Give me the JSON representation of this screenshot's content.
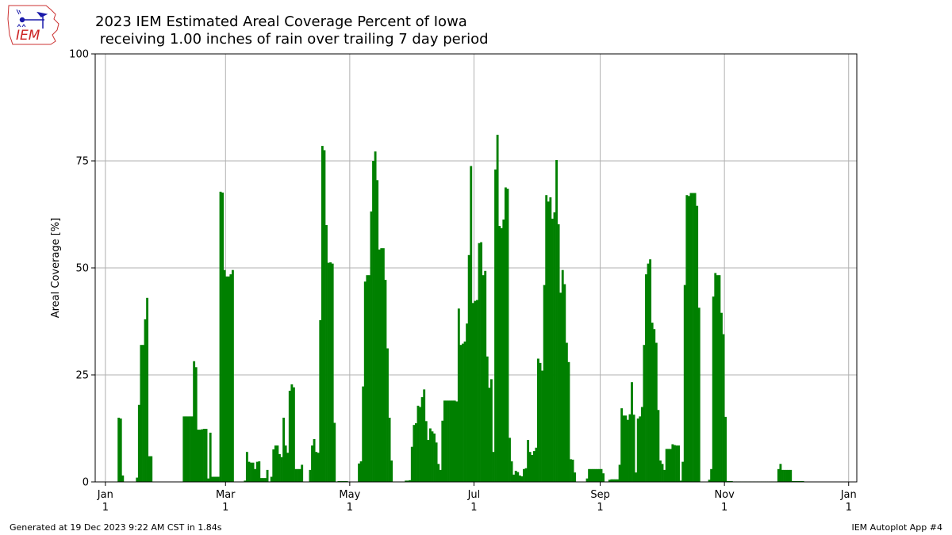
{
  "title_line1": "2023 IEM Estimated Areal Coverage Percent of Iowa",
  "title_line2": " receiving 1.00 inches of rain over trailing 7 day period",
  "footer_left": "Generated at 19 Dec 2023 9:22 AM CST in 1.84s",
  "footer_right": "IEM Autoplot App #4",
  "logo_text": "IEM",
  "colors": {
    "bar": "#008000",
    "grid": "#b0b0b0",
    "logo": "#cc2222"
  },
  "chart_data": {
    "type": "bar",
    "ylabel": "Areal Coverage [%]",
    "xlabel": "",
    "ylim": [
      0,
      100
    ],
    "yticks": [
      0,
      25,
      50,
      75,
      100
    ],
    "xlim": [
      "2022-12-27",
      "2024-01-05"
    ],
    "xticks": [
      {
        "date": "2023-01-01",
        "month": "Jan",
        "day": "1"
      },
      {
        "date": "2023-03-01",
        "month": "Mar",
        "day": "1"
      },
      {
        "date": "2023-05-01",
        "month": "May",
        "day": "1"
      },
      {
        "date": "2023-07-01",
        "month": "Jul",
        "day": "1"
      },
      {
        "date": "2023-09-01",
        "month": "Sep",
        "day": "1"
      },
      {
        "date": "2023-11-01",
        "month": "Nov",
        "day": "1"
      },
      {
        "date": "2024-01-01",
        "month": "Jan",
        "day": "1"
      }
    ],
    "grid": true,
    "bars": [
      [
        "2023-01-07",
        15
      ],
      [
        "2023-01-08",
        14.8
      ],
      [
        "2023-01-09",
        1.5
      ],
      [
        "2023-01-16",
        1
      ],
      [
        "2023-01-17",
        18
      ],
      [
        "2023-01-18",
        32
      ],
      [
        "2023-01-19",
        32
      ],
      [
        "2023-01-20",
        38
      ],
      [
        "2023-01-21",
        43
      ],
      [
        "2023-01-22",
        6
      ],
      [
        "2023-01-23",
        6
      ],
      [
        "2023-02-08",
        15.3
      ],
      [
        "2023-02-09",
        15.3
      ],
      [
        "2023-02-10",
        15.3
      ],
      [
        "2023-02-11",
        15.3
      ],
      [
        "2023-02-12",
        15.3
      ],
      [
        "2023-02-13",
        28.2
      ],
      [
        "2023-02-14",
        26.8
      ],
      [
        "2023-02-15",
        12.2
      ],
      [
        "2023-02-16",
        12.2
      ],
      [
        "2023-02-17",
        12.3
      ],
      [
        "2023-02-18",
        12.4
      ],
      [
        "2023-02-19",
        12.4
      ],
      [
        "2023-02-20",
        0.8
      ],
      [
        "2023-02-21",
        11.5
      ],
      [
        "2023-02-22",
        1.2
      ],
      [
        "2023-02-23",
        1.2
      ],
      [
        "2023-02-24",
        1.2
      ],
      [
        "2023-02-25",
        1.2
      ],
      [
        "2023-02-26",
        67.8
      ],
      [
        "2023-02-27",
        67.6
      ],
      [
        "2023-02-28",
        49.5
      ],
      [
        "2023-03-01",
        48
      ],
      [
        "2023-03-02",
        48
      ],
      [
        "2023-03-03",
        48.5
      ],
      [
        "2023-03-04",
        49.5
      ],
      [
        "2023-03-10",
        0.3
      ],
      [
        "2023-03-11",
        7
      ],
      [
        "2023-03-12",
        4.7
      ],
      [
        "2023-03-13",
        4.5
      ],
      [
        "2023-03-14",
        4.5
      ],
      [
        "2023-03-15",
        3
      ],
      [
        "2023-03-16",
        4.7
      ],
      [
        "2023-03-17",
        4.8
      ],
      [
        "2023-03-18",
        0.9
      ],
      [
        "2023-03-19",
        0.9
      ],
      [
        "2023-03-20",
        0.9
      ],
      [
        "2023-03-21",
        2.8
      ],
      [
        "2023-03-22",
        0.1
      ],
      [
        "2023-03-23",
        1.2
      ],
      [
        "2023-03-24",
        7.6
      ],
      [
        "2023-03-25",
        8.5
      ],
      [
        "2023-03-26",
        8.5
      ],
      [
        "2023-03-27",
        6.5
      ],
      [
        "2023-03-28",
        5.8
      ],
      [
        "2023-03-29",
        15
      ],
      [
        "2023-03-30",
        8.5
      ],
      [
        "2023-03-31",
        6.8
      ],
      [
        "2023-04-01",
        21.3
      ],
      [
        "2023-04-02",
        22.8
      ],
      [
        "2023-04-03",
        22.1
      ],
      [
        "2023-04-04",
        3
      ],
      [
        "2023-04-05",
        3
      ],
      [
        "2023-04-06",
        3
      ],
      [
        "2023-04-07",
        4
      ],
      [
        "2023-04-11",
        2.8
      ],
      [
        "2023-04-12",
        8.5
      ],
      [
        "2023-04-13",
        10
      ],
      [
        "2023-04-14",
        7
      ],
      [
        "2023-04-15",
        6.8
      ],
      [
        "2023-04-16",
        37.8
      ],
      [
        "2023-04-17",
        78.5
      ],
      [
        "2023-04-18",
        77.5
      ],
      [
        "2023-04-19",
        60
      ],
      [
        "2023-04-20",
        51.2
      ],
      [
        "2023-04-21",
        51.3
      ],
      [
        "2023-04-22",
        51
      ],
      [
        "2023-04-23",
        13.8
      ],
      [
        "2023-04-25",
        0.2
      ],
      [
        "2023-04-26",
        0.2
      ],
      [
        "2023-04-27",
        0.2
      ],
      [
        "2023-04-28",
        0.2
      ],
      [
        "2023-04-29",
        0.2
      ],
      [
        "2023-05-05",
        4.3
      ],
      [
        "2023-05-06",
        4.8
      ],
      [
        "2023-05-07",
        22.3
      ],
      [
        "2023-05-08",
        46.8
      ],
      [
        "2023-05-09",
        48.3
      ],
      [
        "2023-05-10",
        48.3
      ],
      [
        "2023-05-11",
        63.2
      ],
      [
        "2023-05-12",
        75
      ],
      [
        "2023-05-13",
        77.2
      ],
      [
        "2023-05-14",
        70.5
      ],
      [
        "2023-05-15",
        54.3
      ],
      [
        "2023-05-16",
        54.6
      ],
      [
        "2023-05-17",
        54.6
      ],
      [
        "2023-05-18",
        47.2
      ],
      [
        "2023-05-19",
        31.2
      ],
      [
        "2023-05-20",
        15
      ],
      [
        "2023-05-21",
        5
      ],
      [
        "2023-05-28",
        0.3
      ],
      [
        "2023-05-29",
        0.3
      ],
      [
        "2023-05-30",
        0.4
      ],
      [
        "2023-05-31",
        8.2
      ],
      [
        "2023-06-01",
        13.3
      ],
      [
        "2023-06-02",
        13.7
      ],
      [
        "2023-06-03",
        17.8
      ],
      [
        "2023-06-04",
        17.5
      ],
      [
        "2023-06-05",
        19.8
      ],
      [
        "2023-06-06",
        21.6
      ],
      [
        "2023-06-07",
        14.2
      ],
      [
        "2023-06-08",
        9.8
      ],
      [
        "2023-06-09",
        12.5
      ],
      [
        "2023-06-10",
        11.8
      ],
      [
        "2023-06-11",
        11.3
      ],
      [
        "2023-06-12",
        9.2
      ],
      [
        "2023-06-13",
        4.2
      ],
      [
        "2023-06-14",
        2.8
      ],
      [
        "2023-06-15",
        14.3
      ],
      [
        "2023-06-16",
        19
      ],
      [
        "2023-06-17",
        19
      ],
      [
        "2023-06-18",
        19
      ],
      [
        "2023-06-19",
        19
      ],
      [
        "2023-06-20",
        19
      ],
      [
        "2023-06-21",
        19
      ],
      [
        "2023-06-22",
        18.8
      ],
      [
        "2023-06-23",
        40.5
      ],
      [
        "2023-06-24",
        32
      ],
      [
        "2023-06-25",
        32.3
      ],
      [
        "2023-06-26",
        32.8
      ],
      [
        "2023-06-27",
        37
      ],
      [
        "2023-06-28",
        53
      ],
      [
        "2023-06-29",
        73.8
      ],
      [
        "2023-06-30",
        41.8
      ],
      [
        "2023-07-01",
        42.3
      ],
      [
        "2023-07-02",
        42.5
      ],
      [
        "2023-07-03",
        55.8
      ],
      [
        "2023-07-04",
        56
      ],
      [
        "2023-07-05",
        48.3
      ],
      [
        "2023-07-06",
        49.3
      ],
      [
        "2023-07-07",
        29.3
      ],
      [
        "2023-07-08",
        22
      ],
      [
        "2023-07-09",
        24
      ],
      [
        "2023-07-10",
        7
      ],
      [
        "2023-07-11",
        73
      ],
      [
        "2023-07-12",
        81.1
      ],
      [
        "2023-07-13",
        59.8
      ],
      [
        "2023-07-14",
        59.3
      ],
      [
        "2023-07-15",
        61.3
      ],
      [
        "2023-07-16",
        68.8
      ],
      [
        "2023-07-17",
        68.5
      ],
      [
        "2023-07-18",
        10.3
      ],
      [
        "2023-07-19",
        4.8
      ],
      [
        "2023-07-20",
        1.7
      ],
      [
        "2023-07-21",
        2.6
      ],
      [
        "2023-07-22",
        2.3
      ],
      [
        "2023-07-23",
        1.5
      ],
      [
        "2023-07-24",
        1.3
      ],
      [
        "2023-07-25",
        3
      ],
      [
        "2023-07-26",
        3.2
      ],
      [
        "2023-07-27",
        9.8
      ],
      [
        "2023-07-28",
        7
      ],
      [
        "2023-07-29",
        6.3
      ],
      [
        "2023-07-30",
        7.2
      ],
      [
        "2023-07-31",
        8
      ],
      [
        "2023-08-01",
        28.8
      ],
      [
        "2023-08-02",
        27.8
      ],
      [
        "2023-08-03",
        26
      ],
      [
        "2023-08-04",
        46
      ],
      [
        "2023-08-05",
        67
      ],
      [
        "2023-08-06",
        65.5
      ],
      [
        "2023-08-07",
        66.5
      ],
      [
        "2023-08-08",
        61.5
      ],
      [
        "2023-08-09",
        63
      ],
      [
        "2023-08-10",
        75.2
      ],
      [
        "2023-08-11",
        60.2
      ],
      [
        "2023-08-12",
        44.2
      ],
      [
        "2023-08-13",
        49.5
      ],
      [
        "2023-08-14",
        46.2
      ],
      [
        "2023-08-15",
        32.5
      ],
      [
        "2023-08-16",
        28
      ],
      [
        "2023-08-17",
        5.3
      ],
      [
        "2023-08-18",
        5.2
      ],
      [
        "2023-08-19",
        2.2
      ],
      [
        "2023-08-25",
        0.8
      ],
      [
        "2023-08-26",
        3
      ],
      [
        "2023-08-27",
        3
      ],
      [
        "2023-08-28",
        3
      ],
      [
        "2023-08-29",
        3
      ],
      [
        "2023-08-30",
        3
      ],
      [
        "2023-08-31",
        3
      ],
      [
        "2023-09-01",
        3
      ],
      [
        "2023-09-02",
        2
      ],
      [
        "2023-09-05",
        0.5
      ],
      [
        "2023-09-06",
        0.6
      ],
      [
        "2023-09-07",
        0.6
      ],
      [
        "2023-09-08",
        0.6
      ],
      [
        "2023-09-09",
        0.6
      ],
      [
        "2023-09-10",
        4
      ],
      [
        "2023-09-11",
        17.2
      ],
      [
        "2023-09-12",
        15.5
      ],
      [
        "2023-09-13",
        15.5
      ],
      [
        "2023-09-14",
        14.5
      ],
      [
        "2023-09-15",
        15.8
      ],
      [
        "2023-09-16",
        23.3
      ],
      [
        "2023-09-17",
        15.7
      ],
      [
        "2023-09-18",
        2.2
      ],
      [
        "2023-09-19",
        14.8
      ],
      [
        "2023-09-20",
        15.3
      ],
      [
        "2023-09-21",
        17.5
      ],
      [
        "2023-09-22",
        32
      ],
      [
        "2023-09-23",
        48.5
      ],
      [
        "2023-09-24",
        51
      ],
      [
        "2023-09-25",
        52
      ],
      [
        "2023-09-26",
        37.2
      ],
      [
        "2023-09-27",
        35.7
      ],
      [
        "2023-09-28",
        32.5
      ],
      [
        "2023-09-29",
        16.8
      ],
      [
        "2023-09-30",
        5
      ],
      [
        "2023-10-01",
        4.2
      ],
      [
        "2023-10-02",
        2.8
      ],
      [
        "2023-10-03",
        7.7
      ],
      [
        "2023-10-04",
        7.7
      ],
      [
        "2023-10-05",
        7.7
      ],
      [
        "2023-10-06",
        8.8
      ],
      [
        "2023-10-07",
        8.6
      ],
      [
        "2023-10-08",
        8.5
      ],
      [
        "2023-10-09",
        8.5
      ],
      [
        "2023-10-10",
        0.3
      ],
      [
        "2023-10-11",
        4.7
      ],
      [
        "2023-10-12",
        46
      ],
      [
        "2023-10-13",
        67
      ],
      [
        "2023-10-14",
        66.8
      ],
      [
        "2023-10-15",
        67.5
      ],
      [
        "2023-10-16",
        67.5
      ],
      [
        "2023-10-17",
        67.5
      ],
      [
        "2023-10-18",
        64.5
      ],
      [
        "2023-10-19",
        40.7
      ],
      [
        "2023-10-24",
        0.5
      ],
      [
        "2023-10-25",
        3
      ],
      [
        "2023-10-26",
        43.3
      ],
      [
        "2023-10-27",
        48.8
      ],
      [
        "2023-10-28",
        48.3
      ],
      [
        "2023-10-29",
        48.3
      ],
      [
        "2023-10-30",
        39.5
      ],
      [
        "2023-10-31",
        34.5
      ],
      [
        "2023-11-01",
        15.2
      ],
      [
        "2023-11-02",
        0.2
      ],
      [
        "2023-11-03",
        0.2
      ],
      [
        "2023-11-04",
        0.2
      ],
      [
        "2023-11-05",
        0.1
      ],
      [
        "2023-11-06",
        0.1
      ],
      [
        "2023-11-07",
        0.1
      ],
      [
        "2023-11-08",
        0.1
      ],
      [
        "2023-11-09",
        0.1
      ],
      [
        "2023-11-10",
        0.1
      ],
      [
        "2023-11-11",
        0.1
      ],
      [
        "2023-11-12",
        0.1
      ],
      [
        "2023-11-13",
        0.1
      ],
      [
        "2023-11-14",
        0.1
      ],
      [
        "2023-11-15",
        0.1
      ],
      [
        "2023-11-16",
        0.1
      ],
      [
        "2023-11-17",
        0.1
      ],
      [
        "2023-11-18",
        0.1
      ],
      [
        "2023-11-19",
        0.1
      ],
      [
        "2023-11-20",
        0.1
      ],
      [
        "2023-11-21",
        0.1
      ],
      [
        "2023-11-22",
        0.1
      ],
      [
        "2023-11-23",
        0.1
      ],
      [
        "2023-11-24",
        0.1
      ],
      [
        "2023-11-25",
        0.1
      ],
      [
        "2023-11-26",
        0.1
      ],
      [
        "2023-11-27",
        3
      ],
      [
        "2023-11-28",
        4.2
      ],
      [
        "2023-11-29",
        2.8
      ],
      [
        "2023-11-30",
        2.8
      ],
      [
        "2023-12-01",
        2.8
      ],
      [
        "2023-12-02",
        2.8
      ],
      [
        "2023-12-03",
        2.8
      ],
      [
        "2023-12-04",
        0.2
      ],
      [
        "2023-12-05",
        0.2
      ],
      [
        "2023-12-06",
        0.2
      ],
      [
        "2023-12-07",
        0.2
      ],
      [
        "2023-12-08",
        0.2
      ],
      [
        "2023-12-09",
        0.2
      ]
    ]
  }
}
